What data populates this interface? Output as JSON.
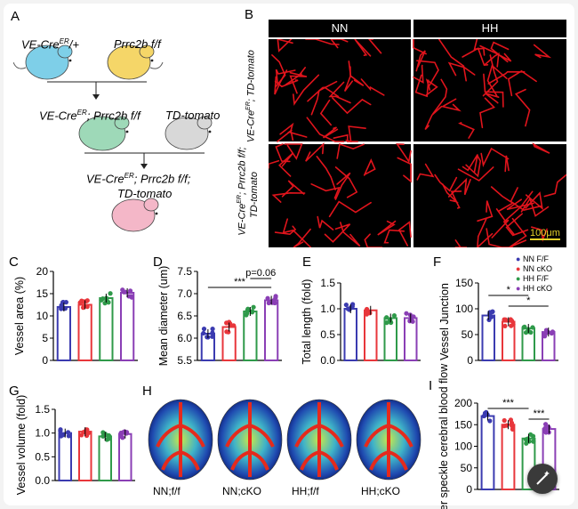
{
  "panels": {
    "A": "A",
    "B": "B",
    "C": "C",
    "D": "D",
    "E": "E",
    "F": "F",
    "G": "G",
    "H": "H",
    "I": "I"
  },
  "colors": {
    "NN_FF": "#3b3bb0",
    "NN_cKO": "#e8363b",
    "HH_FF": "#2f9a4a",
    "HH_cKO": "#8a3fb5"
  },
  "breeding": {
    "mouse1": "VE-Cre",
    "mouse1_sup": "ER",
    "mouse1_suffix": "/+",
    "mouse2": "Prrc2b f/f",
    "cross1_a": "VE-Cre",
    "cross1_sup": "ER",
    "cross1_b": "; Prrc2b f/f",
    "mouse4": "TD-tomato",
    "final_a": "VE-Cre",
    "final_sup": "ER",
    "final_b": "; Prrc2b f/f;",
    "final_c": "TD-tomato"
  },
  "micro": {
    "col_NN": "NN",
    "col_HH": "HH",
    "row1_a": "VE-Cre",
    "row1_sup": "ER",
    "row1_b": "; TD-tomato",
    "row2_a": "VE-Cre",
    "row2_sup": "ER",
    "row2_b": "; Prrc2b f/f;",
    "row2_c": "TD-tomato",
    "scale": "100μm"
  },
  "legend": [
    "NN F/F",
    "NN cKO",
    "HH F/F",
    "HH cKO"
  ],
  "chart_data": [
    {
      "panel": "C",
      "type": "bar",
      "ylabel": "Vessel area (%)",
      "ylim": [
        0,
        20
      ],
      "yticks": [
        "0",
        "5",
        "10",
        "15",
        "20"
      ],
      "series": [
        {
          "name": "NN F/F",
          "values": [
            12.0
          ]
        },
        {
          "name": "NN cKO",
          "values": [
            12.5
          ]
        },
        {
          "name": "HH F/F",
          "values": [
            14.0
          ]
        },
        {
          "name": "HH cKO",
          "values": [
            15.2
          ]
        }
      ],
      "annotations": []
    },
    {
      "panel": "D",
      "type": "bar",
      "ylabel": "Mean diameter (um)",
      "ylim": [
        5.5,
        7.5
      ],
      "yticks": [
        "5.5",
        "6.0",
        "6.5",
        "7.0",
        "7.5"
      ],
      "series": [
        {
          "name": "NN F/F",
          "values": [
            6.1
          ]
        },
        {
          "name": "NN cKO",
          "values": [
            6.25
          ]
        },
        {
          "name": "HH F/F",
          "values": [
            6.6
          ]
        },
        {
          "name": "HH cKO",
          "values": [
            6.85
          ]
        }
      ],
      "annotations": [
        "***",
        "p=0.06"
      ]
    },
    {
      "panel": "E",
      "type": "bar",
      "ylabel": "Total length (fold)",
      "ylim": [
        0,
        1.5
      ],
      "yticks": [
        "0.0",
        "0.5",
        "1.0",
        "1.5"
      ],
      "series": [
        {
          "name": "NN F/F",
          "values": [
            1.0
          ]
        },
        {
          "name": "NN cKO",
          "values": [
            0.97
          ]
        },
        {
          "name": "HH F/F",
          "values": [
            0.82
          ]
        },
        {
          "name": "HH cKO",
          "values": [
            0.82
          ]
        }
      ],
      "annotations": []
    },
    {
      "panel": "F",
      "type": "bar",
      "ylabel": "Vessel Junction",
      "ylim": [
        0,
        150
      ],
      "yticks": [
        "0",
        "50",
        "100",
        "150"
      ],
      "series": [
        {
          "name": "NN F/F",
          "values": [
            87
          ]
        },
        {
          "name": "NN cKO",
          "values": [
            75
          ]
        },
        {
          "name": "HH F/F",
          "values": [
            62
          ]
        },
        {
          "name": "HH cKO",
          "values": [
            55
          ]
        }
      ],
      "annotations": [
        "*",
        "*"
      ]
    },
    {
      "panel": "G",
      "type": "bar",
      "ylabel": "Vessel volume (fold)",
      "ylim": [
        0,
        1.5
      ],
      "yticks": [
        "0.0",
        "0.5",
        "1.0",
        "1.5"
      ],
      "series": [
        {
          "name": "NN F/F",
          "values": [
            1.0
          ]
        },
        {
          "name": "NN cKO",
          "values": [
            1.03
          ]
        },
        {
          "name": "HH F/F",
          "values": [
            0.93
          ]
        },
        {
          "name": "HH cKO",
          "values": [
            0.98
          ]
        }
      ],
      "annotations": []
    },
    {
      "panel": "I",
      "type": "bar",
      "ylabel": "Laser speckle cerebral blood flow",
      "ylim": [
        0,
        200
      ],
      "yticks": [
        "0",
        "50",
        "100",
        "150",
        "200"
      ],
      "series": [
        {
          "name": "NN F/F",
          "values": [
            170
          ]
        },
        {
          "name": "NN cKO",
          "values": [
            150
          ]
        },
        {
          "name": "HH F/F",
          "values": [
            118
          ]
        },
        {
          "name": "HH cKO",
          "values": [
            140
          ]
        }
      ],
      "annotations": [
        "***",
        "***"
      ]
    }
  ],
  "speckle": [
    "NN;f/f",
    "NN;cKO",
    "HH;f/f",
    "HH;cKO"
  ]
}
